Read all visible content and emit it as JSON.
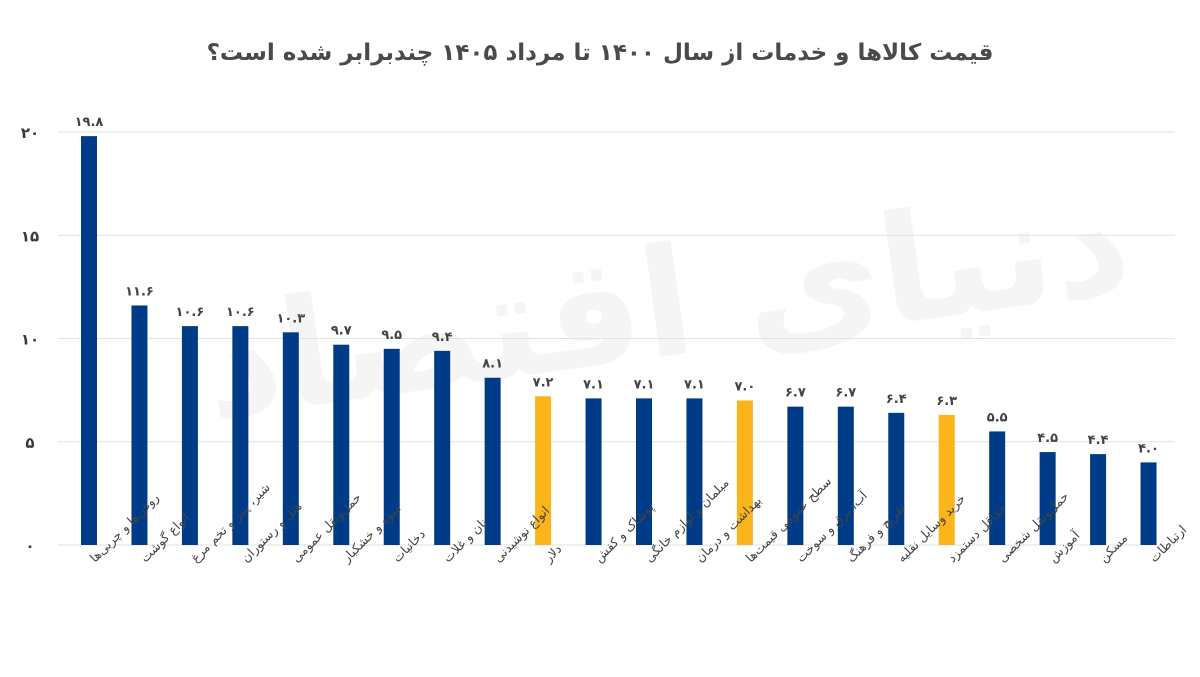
{
  "chart_data": {
    "type": "bar",
    "title": "قیمت کالاها و خدمات از سال ۱۴۰۰ تا مرداد ۱۴۰۵ چندبرابر شده است؟",
    "xlabel": "",
    "ylabel": "",
    "ylim": [
      0,
      20
    ],
    "yticks": [
      0,
      5,
      10,
      15,
      20
    ],
    "ytick_labels": [
      "۰",
      "۵",
      "۱۰",
      "۱۵",
      "۲۰"
    ],
    "grid": true,
    "legend": "none",
    "categories": [
      "روغن‌ها و چربی‌ها",
      "انواع گوشت",
      "شیر، پنیر و تخم مرغ",
      "هتل و رستوران",
      "حمل‌ونقل عمومی",
      "میوه و خشکبار",
      "دخانیات",
      "نان و غلات",
      "انواع نوشیدنی",
      "دلار",
      "پوشاک و کفش",
      "مبلمان و لوازم خانگی",
      "بهداشت و درمان",
      "سطح عمومی قیمت‌ها",
      "آب، برق و سوخت",
      "تفریح و فرهنگ",
      "خرید وسایل نقلیه",
      "حداقل دستمزد",
      "حمل‌ونقل شخصی",
      "آموزش",
      "مسکن",
      "ارتباطات"
    ],
    "values": [
      19.8,
      11.6,
      10.6,
      10.6,
      10.3,
      9.7,
      9.5,
      9.4,
      8.1,
      7.2,
      7.1,
      7.1,
      7.1,
      7.0,
      6.7,
      6.7,
      6.4,
      6.3,
      5.5,
      4.5,
      4.4,
      4.0
    ],
    "value_labels": [
      "۱۹.۸",
      "۱۱.۶",
      "۱۰.۶",
      "۱۰.۶",
      "۱۰.۳",
      "۹.۷",
      "۹.۵",
      "۹.۴",
      "۸.۱",
      "۷.۲",
      "۷.۱",
      "۷.۱",
      "۷.۱",
      "۷.۰",
      "۶.۷",
      "۶.۷",
      "۶.۴",
      "۶.۳",
      "۵.۵",
      "۴.۵",
      "۴.۴",
      "۴.۰"
    ],
    "highlighted": [
      "دلار",
      "سطح عمومی قیمت‌ها",
      "حداقل دستمزد"
    ],
    "colors": {
      "default": "#003b87",
      "highlight": "#fbb51a",
      "grid": "#e2e2e2"
    }
  },
  "watermark": "دنیای اقتصاد"
}
